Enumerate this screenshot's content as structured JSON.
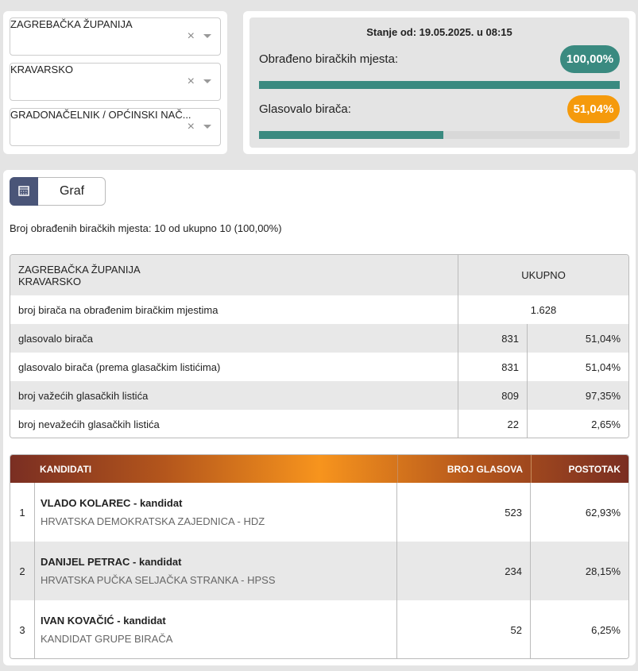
{
  "filters": [
    "ZAGREBAČKA ŽUPANIJA",
    "KRAVARSKO",
    "GRADONAČELNIK / OPĆINSKI NAČ..."
  ],
  "status": {
    "title": "Stanje od: 19.05.2025. u 08:15",
    "processed": {
      "label": "Obrađeno biračkih mjesta:",
      "percent": {
        "value": 100,
        "label": "100,00%"
      }
    },
    "turnout": {
      "label": "Glasovalo birača:",
      "percent": {
        "value": 51.04,
        "label": "51,04%"
      }
    }
  },
  "tab": "Graf",
  "summary": "Broj obrađenih biračkih mjesta: 10 od ukupno 10 (100,00%)",
  "table": {
    "header": [
      "ZAGREBAČKA ŽUPANIJA",
      "KRAVARSKO",
      "UKUPNO"
    ],
    "rows": [
      [
        "broj birača na obrađenim biračkim mjestima",
        "1.628"
      ],
      [
        "glasovalo birača",
        "831",
        "51,04%"
      ],
      [
        "glasovalo birača (prema glasačkim listićima)",
        "831",
        "51,04%"
      ],
      [
        "broj važećih glasačkih listića",
        "809",
        "97,35%"
      ],
      [
        "broj nevažećih glasačkih listića",
        "22",
        "2,65%"
      ]
    ]
  },
  "candidates": {
    "header": [
      "KANDIDATI",
      "BROJ GLASOVA",
      "POSTOTAK"
    ],
    "rows": [
      {
        "index": "1",
        "name": "VLADO KOLAREC - kandidat",
        "party": "HRVATSKA DEMOKRATSKA ZAJEDNICA - HDZ",
        "votes": "523",
        "percent": "62,93%"
      },
      {
        "index": "2",
        "name": "DANIJEL PETRAC - kandidat",
        "party": "HRVATSKA PUČKA SELJAČKA STRANKA - HPSS",
        "votes": "234",
        "percent": "28,15%"
      },
      {
        "index": "3",
        "name": "IVAN KOVAČIĆ - kandidat",
        "party": "KANDIDAT GRUPE BIRAČA",
        "votes": "52",
        "percent": "6,25%"
      }
    ]
  }
}
